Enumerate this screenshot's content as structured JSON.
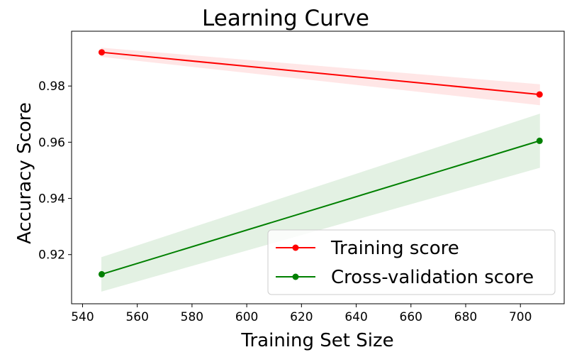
{
  "chart_data": {
    "type": "line",
    "title": "Learning Curve",
    "xlabel": "Training Set Size",
    "ylabel": "Accuracy Score",
    "xlim": [
      536,
      716
    ],
    "ylim": [
      0.9025,
      0.9995
    ],
    "xticks": [
      540,
      560,
      580,
      600,
      620,
      640,
      660,
      680,
      700
    ],
    "yticks": [
      0.92,
      0.94,
      0.96,
      0.98
    ],
    "ytick_labels": [
      "0.92",
      "0.94",
      "0.96",
      "0.98"
    ],
    "grid": false,
    "legend_position": "lower-right",
    "x": [
      547,
      707
    ],
    "series": [
      {
        "name": "Training score",
        "color": "#ff0000",
        "band_color": "#ffe6e6",
        "values": [
          0.992,
          0.977
        ],
        "band_lower": [
          0.9905,
          0.9733
        ],
        "band_upper": [
          0.9935,
          0.9805
        ]
      },
      {
        "name": "Cross-validation score",
        "color": "#008000",
        "band_color": "#e3f1e3",
        "values": [
          0.913,
          0.9605
        ],
        "band_lower": [
          0.907,
          0.951
        ],
        "band_upper": [
          0.919,
          0.97
        ]
      }
    ]
  }
}
